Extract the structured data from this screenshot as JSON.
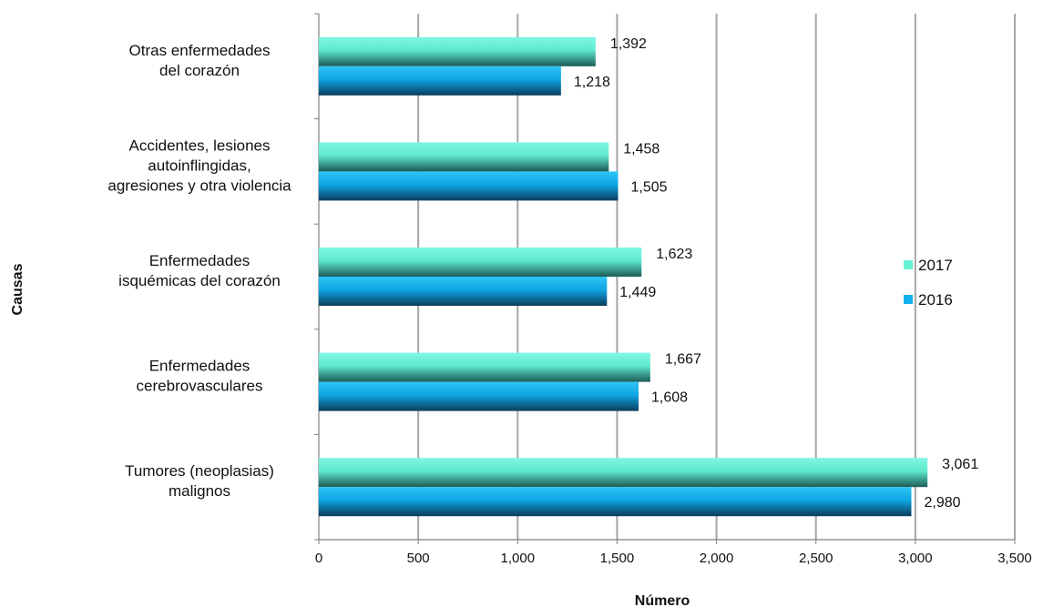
{
  "chart_data": {
    "type": "bar",
    "orientation": "horizontal",
    "title": "",
    "xlabel": "Número",
    "ylabel": "Causas",
    "xlim": [
      0,
      3500
    ],
    "xticks": [
      0,
      500,
      1000,
      1500,
      2000,
      2500,
      3000,
      3500
    ],
    "xtick_labels": [
      "0",
      "500",
      "1,000",
      "1,500",
      "2,000",
      "2,500",
      "3,000",
      "3,500"
    ],
    "grid": true,
    "legend_position": "right",
    "categories": [
      [
        "Otras enfermedades",
        "del corazón"
      ],
      [
        "Accidentes, lesiones",
        "autoinflingidas,",
        "agresiones y otra violencia"
      ],
      [
        "Enfermedades",
        "isquémicas del corazón"
      ],
      [
        "Enfermedades",
        "cerebrovasculares"
      ],
      [
        "Tumores (neoplasias)",
        "malignos"
      ]
    ],
    "series": [
      {
        "name": "2017",
        "color": "#66f2d4",
        "values": [
          1392,
          1458,
          1623,
          1667,
          3061
        ],
        "labels": [
          "1,392",
          "1,458",
          "1,623",
          "1,667",
          "3,061"
        ]
      },
      {
        "name": "2016",
        "color": "#14b0ec",
        "values": [
          1218,
          1505,
          1449,
          1608,
          2980
        ],
        "labels": [
          "1,218",
          "1,505",
          "1,449",
          "1,608",
          "2,980"
        ]
      }
    ]
  }
}
